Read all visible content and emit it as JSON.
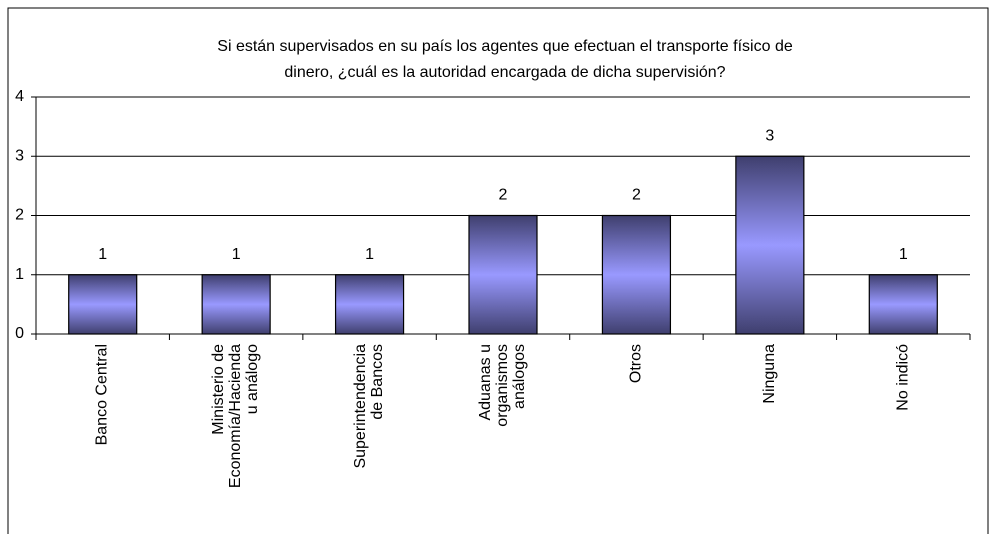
{
  "chart_data": {
    "type": "bar",
    "title": "Si están supervisados en su país los agentes que efectuan el transporte físico de\ndinero,  ¿cuál es la autoridad encargada de dicha supervisión?",
    "categories": [
      "Banco Central",
      "Ministerio de\nEconomía/Hacienda\nu análogo",
      "Superintendencia\nde Bancos",
      "Aduanas u\norganismos\nanálogos",
      "Otros",
      "Ninguna",
      "No indicó"
    ],
    "values": [
      1,
      1,
      1,
      2,
      2,
      3,
      1
    ],
    "color": "#9999ff",
    "ylim": [
      0,
      4
    ],
    "yticks": [
      0,
      1,
      2,
      3,
      4
    ],
    "grid": true
  }
}
